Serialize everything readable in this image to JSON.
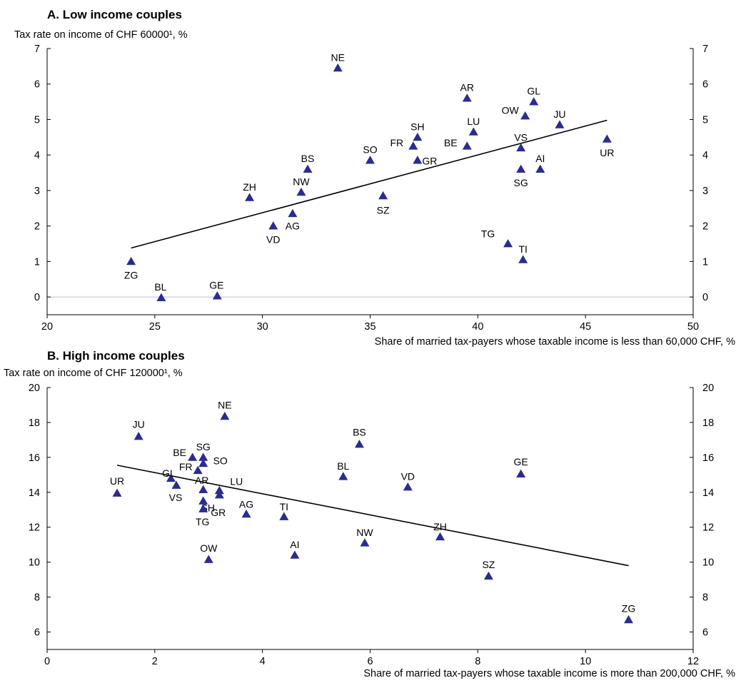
{
  "colors": {
    "marker": "#2b2b90",
    "zero_line": "#b9bde0",
    "axis": "#000000",
    "trend": "#000000"
  },
  "chart_data": [
    {
      "type": "scatter",
      "title": "A. Low income couples",
      "ylabel": "Tax rate on income of CHF 60000¹, %",
      "xlabel": "Share of married tax-payers whose taxable income is less than 60,000 CHF, %",
      "xlim": [
        20,
        50
      ],
      "ylim": [
        -0.5,
        7
      ],
      "xticks": [
        20,
        25,
        30,
        35,
        40,
        45,
        50
      ],
      "yticks": [
        0,
        1,
        2,
        3,
        4,
        5,
        6,
        7
      ],
      "right_axis": true,
      "grid": false,
      "zero_line": true,
      "points": [
        {
          "label": "NE",
          "x": 33.5,
          "y": 6.45
        },
        {
          "label": "AR",
          "x": 39.5,
          "y": 5.6
        },
        {
          "label": "GL",
          "x": 42.6,
          "y": 5.5
        },
        {
          "label": "OW",
          "x": 42.2,
          "y": 5.1
        },
        {
          "label": "JU",
          "x": 43.8,
          "y": 4.85
        },
        {
          "label": "LU",
          "x": 39.8,
          "y": 4.65
        },
        {
          "label": "SH",
          "x": 37.2,
          "y": 4.5
        },
        {
          "label": "FR",
          "x": 37.0,
          "y": 4.25
        },
        {
          "label": "BE",
          "x": 39.5,
          "y": 4.25
        },
        {
          "label": "VS",
          "x": 42.0,
          "y": 4.2
        },
        {
          "label": "UR",
          "x": 46.0,
          "y": 4.45
        },
        {
          "label": "SO",
          "x": 35.0,
          "y": 3.85
        },
        {
          "label": "GR",
          "x": 37.2,
          "y": 3.85
        },
        {
          "label": "AI",
          "x": 42.9,
          "y": 3.6
        },
        {
          "label": "SG",
          "x": 42.0,
          "y": 3.6
        },
        {
          "label": "BS",
          "x": 32.1,
          "y": 3.6
        },
        {
          "label": "NW",
          "x": 31.8,
          "y": 2.95
        },
        {
          "label": "ZH",
          "x": 29.4,
          "y": 2.8
        },
        {
          "label": "SZ",
          "x": 35.6,
          "y": 2.85
        },
        {
          "label": "AG",
          "x": 31.4,
          "y": 2.35
        },
        {
          "label": "VD",
          "x": 30.5,
          "y": 2.0
        },
        {
          "label": "TG",
          "x": 41.4,
          "y": 1.5
        },
        {
          "label": "TI",
          "x": 42.1,
          "y": 1.05
        },
        {
          "label": "ZG",
          "x": 23.9,
          "y": 1.0
        },
        {
          "label": "BL",
          "x": 25.3,
          "y": -0.02
        },
        {
          "label": "GE",
          "x": 27.9,
          "y": 0.03
        }
      ],
      "trendline": {
        "x": [
          23.9,
          46.0
        ],
        "y": [
          1.38,
          4.98
        ]
      }
    },
    {
      "type": "scatter",
      "title": "B. High income couples",
      "ylabel": "Tax rate on income of CHF 120000¹, %",
      "xlabel": "Share of married tax-payers whose taxable income is more than 200,000 CHF, %",
      "xlim": [
        0,
        12
      ],
      "ylim": [
        5,
        20
      ],
      "xticks": [
        0,
        2,
        4,
        6,
        8,
        10,
        12
      ],
      "yticks": [
        6,
        8,
        10,
        12,
        14,
        16,
        18,
        20
      ],
      "right_axis": true,
      "grid": false,
      "zero_line": false,
      "points": [
        {
          "label": "NE",
          "x": 3.3,
          "y": 18.35
        },
        {
          "label": "JU",
          "x": 1.7,
          "y": 17.2
        },
        {
          "label": "BS",
          "x": 5.8,
          "y": 16.75
        },
        {
          "label": "BE",
          "x": 2.7,
          "y": 16.0
        },
        {
          "label": "SG",
          "x": 2.9,
          "y": 16.0
        },
        {
          "label": "SO",
          "x": 2.9,
          "y": 15.65
        },
        {
          "label": "GE",
          "x": 8.8,
          "y": 15.05
        },
        {
          "label": "FR",
          "x": 2.8,
          "y": 15.25
        },
        {
          "label": "GL",
          "x": 2.3,
          "y": 14.8
        },
        {
          "label": "BL",
          "x": 5.5,
          "y": 14.9
        },
        {
          "label": "VD",
          "x": 6.7,
          "y": 14.3
        },
        {
          "label": "VS",
          "x": 2.4,
          "y": 14.4
        },
        {
          "label": "LU",
          "x": 3.2,
          "y": 14.1
        },
        {
          "label": "AR",
          "x": 2.9,
          "y": 14.15
        },
        {
          "label": "SH",
          "x": 3.2,
          "y": 13.85
        },
        {
          "label": "UR",
          "x": 1.3,
          "y": 13.95
        },
        {
          "label": "GR",
          "x": 2.9,
          "y": 13.5
        },
        {
          "label": "TG",
          "x": 2.9,
          "y": 13.05
        },
        {
          "label": "AG",
          "x": 3.7,
          "y": 12.75
        },
        {
          "label": "TI",
          "x": 4.4,
          "y": 12.6
        },
        {
          "label": "ZH",
          "x": 7.3,
          "y": 11.45
        },
        {
          "label": "NW",
          "x": 5.9,
          "y": 11.1
        },
        {
          "label": "AI",
          "x": 4.6,
          "y": 10.4
        },
        {
          "label": "OW",
          "x": 3.0,
          "y": 10.15
        },
        {
          "label": "SZ",
          "x": 8.2,
          "y": 9.2
        },
        {
          "label": "ZG",
          "x": 10.8,
          "y": 6.7
        }
      ],
      "trendline": {
        "x": [
          1.3,
          10.8
        ],
        "y": [
          15.55,
          9.8
        ]
      }
    }
  ]
}
